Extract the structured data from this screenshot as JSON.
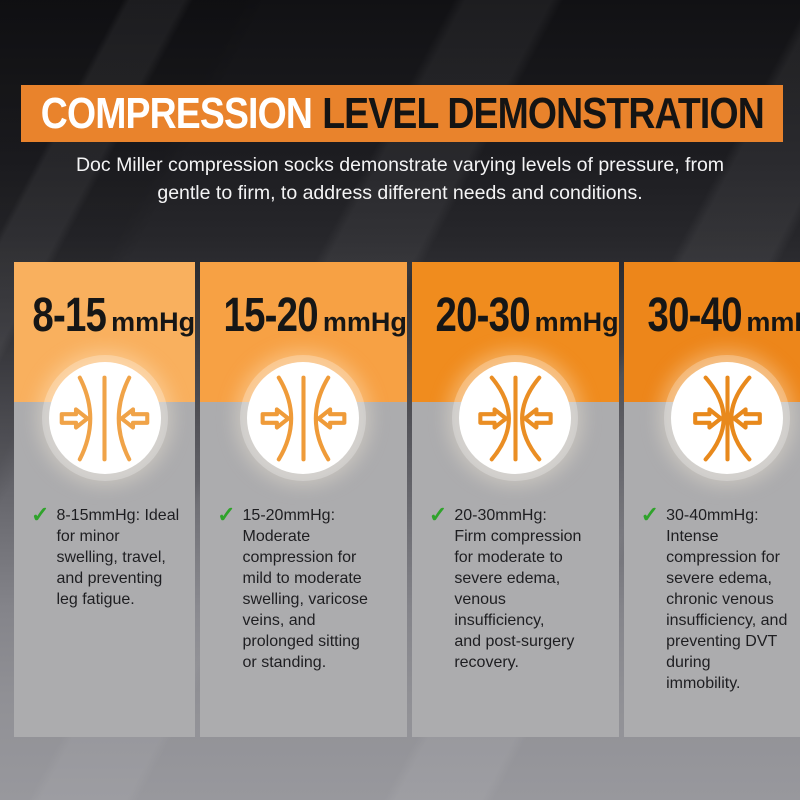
{
  "header": {
    "title_primary": "COMPRESSION",
    "title_secondary": "LEVEL DEMONSTRATION",
    "banner_color": "#E9832C",
    "subtitle": "Doc Miller compression socks demonstrate varying levels of pressure, from\ngentle to firm, to address different needs and conditions."
  },
  "colors": {
    "title_primary_color": "#FFFFFF",
    "title_secondary_color": "#141414",
    "check_green": "#2FA32B",
    "card_body_gray": "#ACACAE",
    "heading_text": "#161616",
    "description_text": "#1E1E21"
  },
  "levels": [
    {
      "range": "8-15",
      "unit": "mmHg",
      "header_color": "#F9B05E",
      "icon_color": "#F0A348",
      "icon": "compression-arrows-icon",
      "check_icon": "check-icon",
      "curve": {
        "end": 24,
        "waist": 35
      },
      "description": "8-15mmHg: Ideal\nfor minor\nswelling, travel,\nand preventing\nleg fatigue."
    },
    {
      "range": "15-20",
      "unit": "mmHg",
      "header_color": "#F7A144",
      "icon_color": "#EF9B39",
      "icon": "compression-arrows-icon",
      "check_icon": "check-icon",
      "curve": {
        "end": 24,
        "waist": 37
      },
      "description": "15-20mmHg:\nModerate\ncompression for\nmild to moderate\nswelling, varicose\nveins, and\nprolonged sitting\nor standing."
    },
    {
      "range": "20-30",
      "unit": "mmHg",
      "header_color": "#F08C1E",
      "icon_color": "#EA8E24",
      "icon": "compression-arrows-icon",
      "check_icon": "check-icon",
      "curve": {
        "end": 25,
        "waist": 43
      },
      "description": "20-30mmHg:\nFirm compression\nfor moderate to\nsevere edema,\nvenous\ninsufficiency,\nand post-surgery\nrecovery."
    },
    {
      "range": "30-40",
      "unit": "mmHg",
      "header_color": "#ED861A",
      "icon_color": "#E8891C",
      "icon": "compression-arrows-icon",
      "check_icon": "check-icon",
      "curve": {
        "end": 27,
        "waist": 46
      },
      "description": "30-40mmHg:\nIntense\ncompression for\nsevere edema,\nchronic venous\ninsufficiency, and\npreventing DVT\nduring\nimmobility."
    }
  ]
}
